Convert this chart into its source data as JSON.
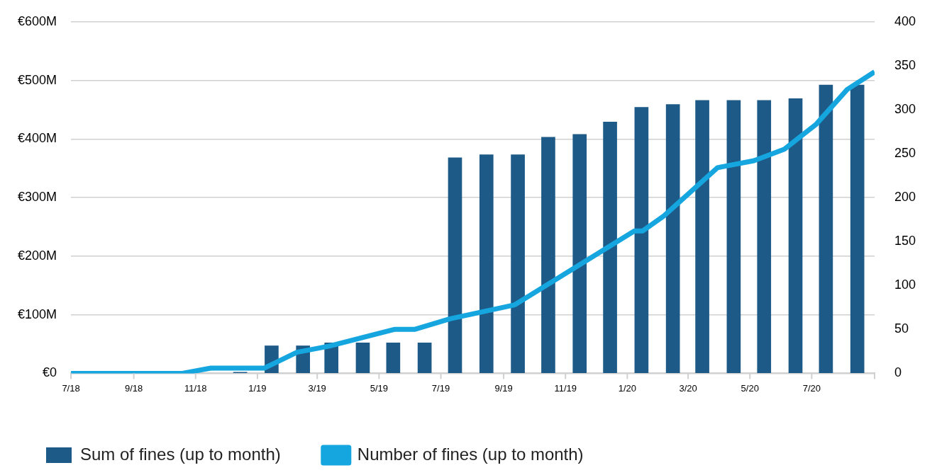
{
  "chart_data": {
    "type": "bar",
    "xlim": [
      "2018-07",
      "2020-09"
    ],
    "xticks": [
      {
        "value": "2018-07",
        "label": "7/18"
      },
      {
        "value": "2018-09",
        "label": "9/18"
      },
      {
        "value": "2018-11",
        "label": "11/18"
      },
      {
        "value": "2019-01",
        "label": "1/19"
      },
      {
        "value": "2019-03",
        "label": "3/19"
      },
      {
        "value": "2019-05",
        "label": "5/19"
      },
      {
        "value": "2019-07",
        "label": "7/19"
      },
      {
        "value": "2019-09",
        "label": "9/19"
      },
      {
        "value": "2019-11",
        "label": "11/19"
      },
      {
        "value": "2020-01",
        "label": "1/20"
      },
      {
        "value": "2020-03",
        "label": "3/20"
      },
      {
        "value": "2020-05",
        "label": "5/20"
      },
      {
        "value": "2020-07",
        "label": "7/20"
      },
      {
        "value": "2020-09",
        "label": null
      }
    ],
    "ylim": [
      0,
      600
    ],
    "yticks": [
      {
        "value": 0,
        "label": "€0"
      },
      {
        "value": 100,
        "label": "€100M"
      },
      {
        "value": 200,
        "label": "€200M"
      },
      {
        "value": 300,
        "label": "€300M"
      },
      {
        "value": 400,
        "label": "€400M"
      },
      {
        "value": 500,
        "label": "€500M"
      },
      {
        "value": 600,
        "label": "€600M"
      }
    ],
    "y2lim": [
      0,
      400
    ],
    "y2ticks": [
      0,
      50,
      100,
      150,
      200,
      250,
      300,
      350,
      400
    ],
    "grid": "y",
    "legend": "bottom",
    "marker": "none",
    "series": [
      {
        "name": "Sum of fines (up to month)",
        "color": "#1d5a87",
        "x": [
          "2018-12-15",
          "2019-01-15",
          "2019-02-15",
          "2019-03-15",
          "2019-04-15",
          "2019-05-15",
          "2019-06-15",
          "2019-07-15",
          "2019-08-15",
          "2019-09-15",
          "2019-10-15",
          "2019-11-15",
          "2019-12-15",
          "2020-01-15",
          "2020-02-15",
          "2020-03-15",
          "2020-04-15",
          "2020-05-15",
          "2020-06-15",
          "2020-07-15",
          "2020-08-15"
        ],
        "values": [
          2,
          47,
          47,
          52,
          52,
          52,
          52,
          368,
          373,
          373,
          403,
          408,
          429,
          454,
          459,
          466,
          466,
          466,
          469,
          492,
          492
        ]
      },
      {
        "name": "Number of fines (up to month)",
        "type": "line",
        "axis": "y2",
        "color": "#15a6df",
        "x": [
          "2018-07-01",
          "2018-10-19",
          "2018-11-16",
          "2019-01-08",
          "2019-02-09",
          "2019-03-13",
          "2019-05-16",
          "2019-06-05",
          "2019-07-10",
          "2019-09-12",
          "2020-01-08",
          "2020-01-16",
          "2020-02-06",
          "2020-03-30",
          "2020-05-05",
          "2020-06-04",
          "2020-07-05",
          "2020-08-05",
          "2020-09-01"
        ],
        "values": [
          0,
          0,
          6,
          6,
          24,
          31,
          50,
          50,
          62,
          78,
          162,
          162,
          179,
          234,
          242,
          255,
          283,
          323,
          343
        ]
      }
    ]
  }
}
